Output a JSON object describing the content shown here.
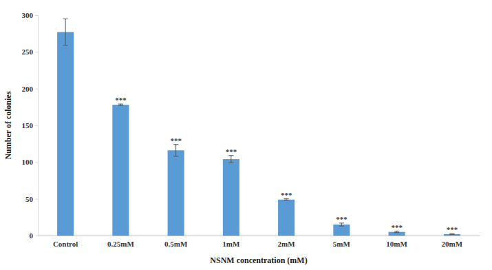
{
  "chart_data": {
    "type": "bar",
    "x_label": "NSNM concentration (mM)",
    "y_label": "Number of colonies",
    "categories": [
      "Control",
      "0.25mM",
      "0.5mM",
      "1mM",
      "2mM",
      "5mM",
      "10mM",
      "20mM"
    ],
    "values": [
      277,
      178,
      116,
      104,
      49,
      15,
      5,
      2
    ],
    "errors": [
      18,
      1,
      8,
      5,
      1,
      2,
      1,
      0.5
    ],
    "annotations": [
      null,
      "***",
      "***",
      "***",
      "***",
      "***",
      "***",
      "***"
    ],
    "color": "#5b9bd5",
    "ylim": [
      0,
      300
    ],
    "yticks": [
      0,
      50,
      100,
      150,
      200,
      250,
      300
    ],
    "grid": false
  }
}
